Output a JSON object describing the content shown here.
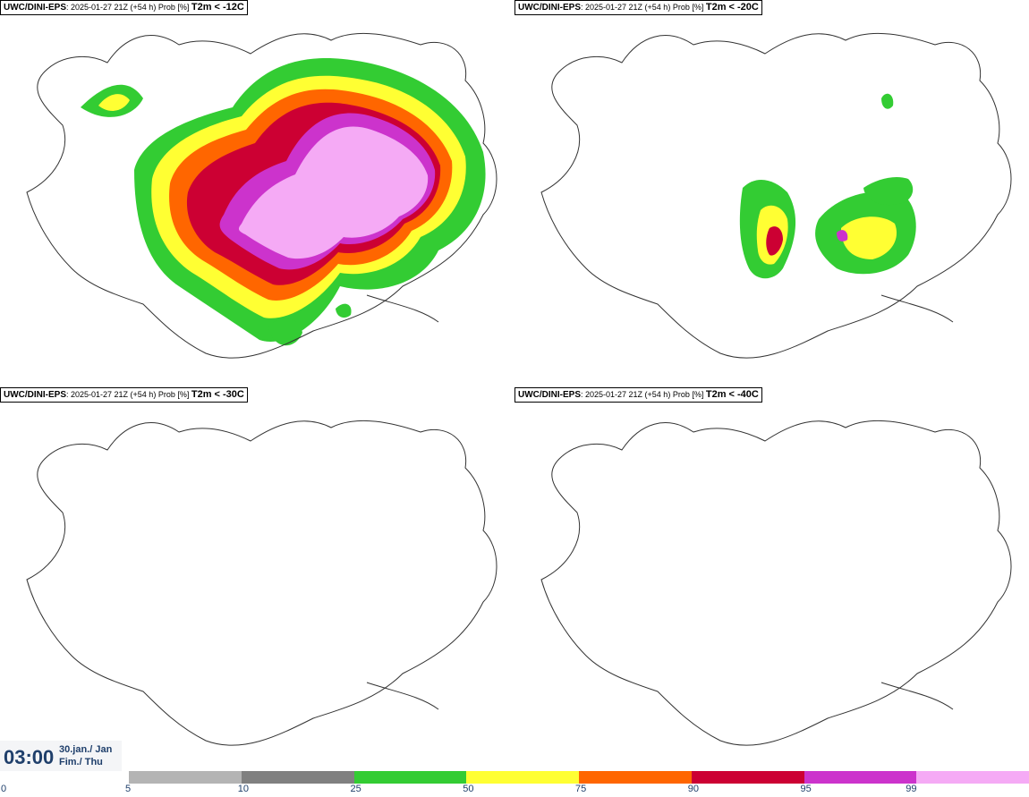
{
  "panels": [
    {
      "model": "UWC/DINI-EPS",
      "info": ": 2025-01-27 21Z (+54 h) Prob [%]",
      "threshold": "T2m < -12C"
    },
    {
      "model": "UWC/DINI-EPS",
      "info": ": 2025-01-27 21Z (+54 h) Prob [%]",
      "threshold": "T2m < -20C"
    },
    {
      "model": "UWC/DINI-EPS",
      "info": ": 2025-01-27 21Z (+54 h) Prob [%]",
      "threshold": "T2m < -30C"
    },
    {
      "model": "UWC/DINI-EPS",
      "info": ": 2025-01-27 21Z (+54 h) Prob [%]",
      "threshold": "T2m < -40C"
    }
  ],
  "time": {
    "hour": "03:00",
    "date": "30.jan./ Jan",
    "weekday": "Fim./ Thu"
  },
  "colorbar": {
    "ticks": [
      "0",
      "5",
      "10",
      "25",
      "50",
      "75",
      "90",
      "95",
      "99"
    ],
    "colors": [
      "#b4b4b4",
      "#808080",
      "#33cc33",
      "#ffff33",
      "#ff6600",
      "#cc0033",
      "#cc33cc",
      "#f5aaf5"
    ]
  }
}
